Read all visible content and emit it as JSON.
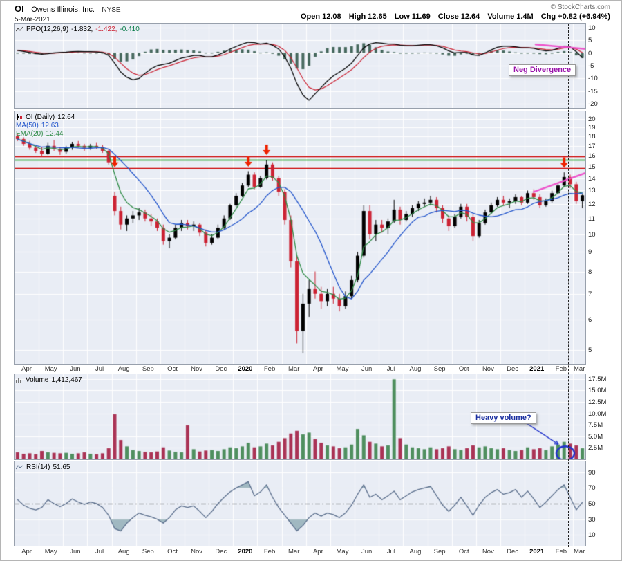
{
  "header": {
    "symbol": "OI",
    "company": "Owens Illinois, Inc.",
    "exchange": "NYSE",
    "copyright": "© StockCharts.com",
    "date": "5-Mar-2021",
    "quote": {
      "open_label": "Open",
      "open": "12.08",
      "high_label": "High",
      "high": "12.65",
      "low_label": "Low",
      "low": "11.69",
      "close_label": "Close",
      "close": "12.64",
      "volume_label": "Volume",
      "volume": "1.4M",
      "chg_label": "Chg",
      "chg": "+0.82 (+6.94%)"
    }
  },
  "panels": {
    "ppo": {
      "label": "PPO(12,26,9)",
      "value_line": "-1.832,",
      "value_signal": "-1.422,",
      "value_hist": "-0.410"
    },
    "price": {
      "label": "OI (Daily)",
      "value": "12.64",
      "ma_label": "MA(50)",
      "ma_value": "12.63",
      "ema_label": "EMA(20)",
      "ema_value": "12.44"
    },
    "volume": {
      "label": "Volume",
      "value": "1,412,467"
    },
    "rsi": {
      "label": "RSI(14)",
      "value": "51.65"
    }
  },
  "axis": {
    "months": [
      "Apr",
      "May",
      "Jun",
      "Jul",
      "Aug",
      "Sep",
      "Oct",
      "Nov",
      "Dec",
      "2020",
      "Feb",
      "Mar",
      "Apr",
      "May",
      "Jun",
      "Jul",
      "Aug",
      "Sep",
      "Oct",
      "Nov",
      "Dec",
      "2021",
      "Feb",
      "Mar"
    ],
    "weeks_per_month": 4,
    "price_ticks": [
      20,
      19,
      18,
      17,
      16,
      15,
      14,
      13,
      12,
      11,
      10,
      9,
      8,
      7,
      6,
      5
    ],
    "ppo_ticks": [
      10,
      5,
      0,
      -5,
      -10,
      -15,
      -20
    ],
    "volume_ticks": [
      "17.5M",
      "15.0M",
      "12.5M",
      "10.0M",
      "7.5M",
      "5.0M",
      "2.5M"
    ],
    "rsi_ticks": [
      90,
      70,
      50,
      30,
      10
    ]
  },
  "annotations": {
    "neg_divergence": {
      "text": "Neg Divergence"
    },
    "heavy_volume": {
      "text": "Heavy volume?"
    },
    "price_hlines": [
      {
        "value": 15.95,
        "color": "#cc0000"
      },
      {
        "value": 15.65,
        "color": "#009900"
      },
      {
        "value": 14.85,
        "color": "#cc0000"
      }
    ],
    "price_arrows": [
      {
        "i": 16,
        "price": 14.95
      },
      {
        "i": 38,
        "price": 15.0
      },
      {
        "i": 41,
        "price": 16.1
      },
      {
        "i": 90,
        "price": 14.9
      }
    ],
    "price_trendline": {
      "i1": 85,
      "p1": 12.9,
      "i2": 93.8,
      "p2": 14.5
    },
    "ppo_trendline": {
      "i1": 85.3,
      "v1": 3.3,
      "i2": 93.8,
      "v2": 1.5
    },
    "vline_i": 90.7,
    "volume_circle": {
      "i": 90.2,
      "v": 1.3
    }
  },
  "colors": {
    "panel_bg": "#e9edf5",
    "grid": "#ffffff",
    "up": "#000000",
    "down": "#cc2233",
    "ma50": "#2255cc",
    "ema20": "#2e8b45",
    "ppo_line": "#000000",
    "ppo_signal": "#cc2233",
    "ppo_hist": "#47695e",
    "vol_up": "#4f8f5f",
    "vol_down": "#aa3355",
    "rsi_line": "#5a6e8c",
    "rsi_fill": "rgba(100,140,150,0.55)",
    "annotation_red": "#ee2200",
    "trendline": "#ee55cc",
    "circle": "#2233cc"
  },
  "chart_data": [
    {
      "type": "line",
      "name": "PPO (12,26,9) with signal line and histogram",
      "series_labels": [
        "PPO",
        "Signal",
        "Histogram"
      ],
      "last_values": {
        "ppo": -1.832,
        "signal": -1.422,
        "histogram": -0.41
      },
      "signal_smoothing": 4,
      "ylim": [
        -21.5,
        11.5
      ],
      "x_note": "weekly-resolution approximation, Apr 2019 - Mar 2021",
      "ppo": [
        1.0,
        0.6,
        0.2,
        -0.2,
        -0.5,
        -0.3,
        0.0,
        0.2,
        0.3,
        0.5,
        0.6,
        0.5,
        0.5,
        0.4,
        0.2,
        -1.0,
        -4.0,
        -7.5,
        -9.5,
        -10.5,
        -10.0,
        -8.0,
        -6.2,
        -5.0,
        -4.5,
        -4.0,
        -3.0,
        -2.0,
        -1.5,
        -1.0,
        -1.0,
        -1.5,
        -1.5,
        -0.8,
        0.2,
        1.5,
        2.5,
        3.5,
        4.2,
        4.0,
        3.5,
        3.8,
        3.0,
        1.5,
        -1.5,
        -6.0,
        -12.0,
        -16.5,
        -18.5,
        -16.0,
        -13.5,
        -11.0,
        -9.0,
        -7.5,
        -6.0,
        -4.0,
        -1.0,
        2.0,
        3.5,
        4.0,
        3.8,
        3.5,
        3.5,
        3.0,
        2.8,
        2.8,
        3.0,
        3.2,
        3.2,
        2.8,
        2.0,
        0.8,
        0.0,
        0.2,
        0.2,
        -0.8,
        -1.0,
        0.0,
        1.2,
        2.2,
        2.6,
        2.6,
        2.4,
        2.0,
        2.0,
        1.8,
        1.2,
        0.8,
        1.0,
        1.8,
        2.6,
        2.4,
        0.5,
        -1.8
      ]
    },
    {
      "type": "candlestick",
      "name": "OI (Daily) price",
      "scale": "log",
      "ylim": [
        4.6,
        20.9
      ],
      "last_close": 12.64,
      "ma_window": 10,
      "ma_label_value": 12.63,
      "ema_window": 4,
      "ema_label_value": 12.44,
      "ohlc": [
        [
          18.0,
          18.3,
          17.5,
          17.7
        ],
        [
          17.7,
          17.9,
          17.0,
          17.2
        ],
        [
          17.2,
          17.5,
          16.6,
          16.8
        ],
        [
          16.8,
          17.0,
          16.3,
          16.5
        ],
        [
          16.5,
          16.9,
          16.0,
          16.2
        ],
        [
          16.2,
          17.3,
          16.1,
          17.0
        ],
        [
          17.0,
          17.6,
          16.5,
          16.7
        ],
        [
          16.7,
          16.9,
          16.1,
          16.4
        ],
        [
          16.4,
          17.0,
          16.2,
          16.8
        ],
        [
          16.8,
          17.4,
          16.6,
          17.2
        ],
        [
          17.2,
          17.5,
          16.8,
          17.0
        ],
        [
          17.0,
          17.2,
          16.5,
          16.8
        ],
        [
          16.8,
          17.2,
          16.6,
          17.0
        ],
        [
          17.0,
          17.3,
          16.7,
          16.9
        ],
        [
          16.9,
          17.1,
          16.3,
          16.5
        ],
        [
          16.5,
          16.7,
          15.2,
          15.4
        ],
        [
          12.6,
          12.9,
          11.2,
          11.5
        ],
        [
          11.5,
          11.8,
          10.3,
          10.6
        ],
        [
          10.6,
          11.2,
          10.2,
          11.0
        ],
        [
          11.0,
          11.5,
          10.7,
          11.2
        ],
        [
          11.2,
          11.7,
          10.9,
          11.4
        ],
        [
          11.4,
          11.6,
          10.8,
          11.0
        ],
        [
          11.0,
          11.3,
          10.5,
          10.8
        ],
        [
          10.8,
          11.0,
          10.2,
          10.4
        ],
        [
          10.4,
          10.6,
          9.4,
          9.6
        ],
        [
          9.6,
          10.0,
          9.2,
          9.8
        ],
        [
          9.8,
          10.6,
          9.7,
          10.4
        ],
        [
          10.4,
          10.9,
          10.2,
          10.7
        ],
        [
          10.7,
          10.9,
          10.3,
          10.5
        ],
        [
          10.5,
          10.8,
          10.2,
          10.6
        ],
        [
          10.6,
          10.7,
          9.9,
          10.1
        ],
        [
          10.1,
          10.3,
          9.3,
          9.5
        ],
        [
          9.5,
          10.0,
          9.4,
          9.8
        ],
        [
          9.8,
          10.6,
          9.7,
          10.4
        ],
        [
          10.4,
          11.2,
          10.3,
          11.0
        ],
        [
          11.0,
          12.0,
          10.9,
          11.9
        ],
        [
          11.9,
          12.8,
          11.8,
          12.6
        ],
        [
          12.6,
          13.6,
          12.5,
          13.4
        ],
        [
          13.4,
          14.6,
          13.3,
          14.3
        ],
        [
          14.3,
          14.5,
          13.1,
          13.3
        ],
        [
          13.3,
          14.2,
          13.2,
          14.0
        ],
        [
          14.0,
          15.6,
          13.9,
          15.2
        ],
        [
          15.2,
          15.4,
          13.8,
          14.0
        ],
        [
          14.0,
          14.2,
          12.6,
          12.9
        ],
        [
          12.9,
          13.1,
          10.6,
          10.9
        ],
        [
          10.9,
          11.2,
          8.2,
          8.5
        ],
        [
          8.5,
          8.8,
          5.2,
          5.6
        ],
        [
          5.6,
          7.0,
          4.9,
          6.6
        ],
        [
          6.6,
          7.6,
          6.1,
          7.2
        ],
        [
          7.2,
          8.0,
          6.8,
          7.0
        ],
        [
          7.0,
          7.3,
          6.4,
          6.7
        ],
        [
          6.7,
          7.2,
          6.5,
          7.0
        ],
        [
          7.0,
          7.3,
          6.6,
          6.8
        ],
        [
          6.8,
          7.0,
          6.3,
          6.5
        ],
        [
          6.5,
          7.1,
          6.4,
          6.9
        ],
        [
          6.9,
          7.8,
          6.8,
          7.6
        ],
        [
          7.6,
          9.0,
          7.5,
          8.8
        ],
        [
          8.8,
          11.9,
          8.7,
          11.5
        ],
        [
          11.5,
          11.9,
          9.7,
          10.0
        ],
        [
          10.0,
          10.9,
          9.6,
          10.6
        ],
        [
          10.6,
          10.9,
          10.1,
          10.4
        ],
        [
          10.4,
          11.0,
          10.0,
          10.8
        ],
        [
          10.8,
          12.3,
          10.7,
          11.6
        ],
        [
          11.6,
          11.8,
          10.6,
          10.9
        ],
        [
          10.9,
          11.5,
          10.8,
          11.3
        ],
        [
          11.3,
          11.9,
          11.1,
          11.7
        ],
        [
          11.7,
          12.2,
          11.5,
          12.0
        ],
        [
          12.0,
          12.4,
          11.8,
          12.1
        ],
        [
          12.1,
          12.6,
          11.9,
          12.3
        ],
        [
          12.3,
          12.5,
          11.4,
          11.7
        ],
        [
          11.7,
          11.9,
          10.7,
          11.0
        ],
        [
          11.0,
          11.2,
          10.2,
          10.5
        ],
        [
          10.5,
          11.3,
          10.4,
          11.1
        ],
        [
          11.1,
          12.0,
          11.0,
          11.8
        ],
        [
          11.8,
          12.0,
          10.8,
          11.1
        ],
        [
          11.1,
          11.3,
          9.6,
          9.9
        ],
        [
          9.9,
          10.9,
          9.8,
          10.7
        ],
        [
          10.7,
          11.6,
          10.6,
          11.4
        ],
        [
          11.4,
          12.1,
          11.3,
          11.9
        ],
        [
          11.9,
          12.5,
          11.8,
          12.3
        ],
        [
          12.3,
          12.6,
          11.9,
          12.1
        ],
        [
          12.1,
          12.4,
          11.7,
          12.2
        ],
        [
          12.2,
          12.7,
          12.0,
          12.5
        ],
        [
          12.5,
          12.6,
          11.9,
          12.1
        ],
        [
          12.1,
          13.0,
          12.0,
          12.8
        ],
        [
          12.8,
          13.1,
          12.3,
          12.5
        ],
        [
          12.5,
          12.7,
          11.7,
          11.9
        ],
        [
          11.9,
          12.4,
          11.8,
          12.2
        ],
        [
          12.2,
          13.0,
          12.1,
          12.8
        ],
        [
          12.8,
          13.6,
          12.7,
          13.4
        ],
        [
          13.4,
          14.5,
          13.3,
          14.1
        ],
        [
          14.1,
          14.3,
          13.2,
          13.5
        ],
        [
          13.5,
          13.7,
          12.0,
          12.2
        ],
        [
          12.2,
          12.7,
          11.7,
          12.64
        ]
      ]
    },
    {
      "type": "bar",
      "name": "Volume (millions of shares)",
      "last_volume": 1412467,
      "ylim": [
        0,
        18.5
      ],
      "values": [
        1.5,
        1.2,
        1.3,
        1.1,
        1.8,
        1.5,
        1.4,
        1.3,
        1.4,
        1.2,
        1.3,
        1.5,
        1.2,
        1.1,
        1.3,
        2.4,
        9.8,
        4.2,
        2.8,
        2.0,
        1.8,
        1.6,
        1.5,
        1.7,
        2.6,
        1.9,
        1.6,
        1.5,
        7.4,
        2.2,
        1.7,
        1.9,
        2.0,
        1.8,
        2.2,
        2.6,
        2.4,
        2.8,
        3.6,
        2.6,
        2.8,
        3.4,
        3.0,
        3.8,
        4.6,
        5.6,
        6.2,
        5.4,
        5.8,
        4.4,
        3.6,
        3.0,
        2.8,
        2.4,
        2.6,
        3.2,
        6.6,
        5.2,
        3.8,
        3.4,
        2.8,
        3.0,
        17.4,
        4.6,
        3.2,
        2.6,
        2.4,
        2.2,
        2.6,
        2.2,
        2.4,
        2.8,
        2.2,
        2.0,
        2.4,
        3.0,
        2.6,
        2.8,
        2.4,
        2.2,
        2.4,
        2.0,
        1.8,
        2.0,
        2.6,
        2.2,
        2.4,
        2.0,
        2.8,
        3.2,
        3.8,
        3.4,
        3.0,
        2.4
      ]
    },
    {
      "type": "line",
      "name": "RSI(14)",
      "last_value": 51.65,
      "overbought": 70,
      "oversold": 30,
      "ylim": [
        -4,
        104
      ],
      "values": [
        55,
        48,
        44,
        42,
        45,
        55,
        50,
        46,
        50,
        56,
        52,
        49,
        52,
        50,
        45,
        35,
        18,
        15,
        25,
        32,
        38,
        35,
        33,
        30,
        25,
        32,
        42,
        47,
        45,
        47,
        40,
        32,
        40,
        50,
        58,
        65,
        70,
        74,
        78,
        60,
        65,
        74,
        58,
        45,
        35,
        25,
        15,
        22,
        32,
        38,
        34,
        38,
        36,
        32,
        38,
        48,
        62,
        74,
        58,
        62,
        55,
        60,
        66,
        55,
        60,
        65,
        68,
        70,
        72,
        60,
        48,
        40,
        48,
        58,
        47,
        35,
        48,
        58,
        64,
        68,
        62,
        64,
        68,
        58,
        66,
        56,
        45,
        52,
        60,
        68,
        74,
        58,
        42,
        51.65
      ]
    }
  ]
}
